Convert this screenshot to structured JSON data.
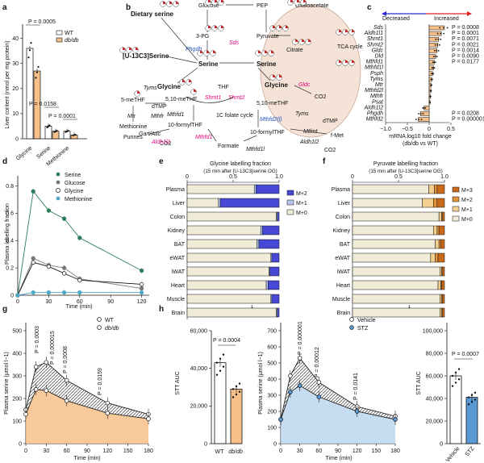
{
  "colors": {
    "wt": "#ffffff",
    "dbdb": "#f7c08a",
    "serine": "#2e7d5b",
    "glucose": "#777777",
    "glycine": "#ffffff",
    "methionine": "#4fa9c6",
    "m3": "#c96a1a",
    "m2_pyr": "#e0923c",
    "m1_pyr": "#f3cf8f",
    "m2_gly": "#4848d6",
    "m1_gly": "#b5c8ec",
    "m0": "#f1ecd8",
    "vehicle": "#ffffff",
    "stz": "#5b9bd5",
    "magenta": "#e0007a",
    "blue_enz": "#2255cc",
    "increased": "#e02020",
    "decreased": "#2a2ad6"
  },
  "panels": {
    "a": "a",
    "b": "b",
    "c": "c",
    "d": "d",
    "e": "e",
    "f": "f",
    "g": "g",
    "h": "h",
    "i": "i",
    "j": "j"
  },
  "a": {
    "ylabel": "Liver content (nmol per mg protein)",
    "legend": [
      "WT",
      "db/db"
    ],
    "categories": [
      "Glycine",
      "Serine",
      "Methionine"
    ],
    "pvalues": [
      "P = 0.0005",
      "P = 0.0158",
      "P = 0.0001"
    ],
    "ticks": [
      "0",
      "10",
      "20",
      "30",
      "40"
    ]
  },
  "b": {
    "labels": {
      "dietary": "Dietary serine",
      "glucose": "Glucose",
      "pep": "PEP",
      "oaa": "Oxaloacetate",
      "pg3": "3-PG",
      "pyruvate": "Pyruvate",
      "serine_c": "Serine",
      "serine_m": "Serine",
      "citrate": "Citrate",
      "tca": "TCA cycle",
      "u13c": "[U-13C3]Serine",
      "glycine_c": "Glycine",
      "glycine_m": "Glycine",
      "thf": "THF",
      "co2a": "CO2",
      "co2b": "CO2",
      "co2c": "CO2",
      "dtmp_c": "dTMP",
      "dtmp_m": "dTMP",
      "mthf5": "5-meTHF",
      "mthf510_c": "5,10-meTHF",
      "mthf510_m": "5,10-meTHF",
      "methionine": "Methionine",
      "purines": "Purines",
      "fthf_c": "10-formylTHF",
      "fthf_m": "10-formylTHF",
      "folate": "1C folate cycle",
      "formate": "Formate",
      "fmet": "f-Met"
    },
    "enzymes": {
      "phgdh": "Phgdh",
      "sds": "Sds",
      "tyms_c": "Tyms",
      "tyms_m": "Tyms",
      "mthfr": "Mthfr",
      "mtr": "Mtr",
      "shmt1": "Shmt1",
      "shmt2": "Shmt2",
      "gldc": "Gldc",
      "mthfd1_a": "Mthfd1",
      "mthfd1_b": "Mthfd1",
      "mthfd1l": "Mthfd1l",
      "mthfd2l": "Mthfd2(l)",
      "gartatic": "Gart/Atic",
      "aldh1l1": "Aldh1l1",
      "aldh1l2": "Aldh1l2",
      "mtfmt": "Mtfmt"
    }
  },
  "c": {
    "decreased": "Decreased",
    "increased": "Increased",
    "xlabel": "mRNA log10 fold change",
    "xlabel2": "(db/db vs WT)",
    "ticks": [
      "−1.0",
      "−0.5",
      "0",
      "0.5"
    ],
    "genes": [
      "Sds",
      "Aldh1l1",
      "Shmt1",
      "Shmt2",
      "Gldc",
      "Dld",
      "Mthfd1",
      "Mthfd1l",
      "Psph",
      "Tyms",
      "Mtr",
      "Mthfd2l",
      "Mthfr",
      "Psat",
      "Aldh1l2",
      "Phgdh",
      "Mthfd2"
    ],
    "values": [
      0.35,
      0.28,
      0.22,
      0.2,
      0.18,
      0.15,
      0.12,
      0.1,
      0.08,
      0.06,
      0.05,
      0.04,
      0.03,
      0.02,
      -0.12,
      -0.2,
      -0.25
    ],
    "pvalues": [
      "P = 0.0008",
      "P = 0.0001",
      "P = 0.0071",
      "P = 0.0021",
      "P = 0.0014",
      "P = 0.0090",
      "P = 0.0177",
      "P = 0.0208",
      "P = 0.000001"
    ]
  },
  "d": {
    "ylabel": "Plasma labelling fraction",
    "xlabel": "Time (min)",
    "legend": [
      "Serine",
      "Glucose",
      "Glycine",
      "Methionine"
    ],
    "xticks": [
      "0",
      "30",
      "60",
      "90",
      "120"
    ],
    "yticks": [
      "0",
      "0.2",
      "0.4",
      "0.6",
      "0.8"
    ]
  },
  "e": {
    "title": "Glycine labelling fraction",
    "subtitle": "(15 min after [U-13C3]serine OG)",
    "tissues": [
      "Plasma",
      "Liver",
      "Colon",
      "Kidney",
      "BAT",
      "eWAT",
      "iWAT",
      "Heart",
      "Muscle",
      "Brain"
    ],
    "legend": [
      "M+2",
      "M+1",
      "M+0"
    ],
    "ticks": [
      "0",
      "0.5",
      "1.0"
    ]
  },
  "f": {
    "title": "Pyruvate labelling fraction",
    "subtitle": "(15 min after [U-13C3]serine OG)",
    "tissues": [
      "Plasma",
      "Liver",
      "Colon",
      "Kidney",
      "BAT",
      "eWAT",
      "iWAT",
      "Heart",
      "Muscle",
      "Brain"
    ],
    "legend": [
      "M+3",
      "M+2",
      "M+1",
      "M+0"
    ],
    "ticks": [
      "0",
      "0.5",
      "1.0"
    ]
  },
  "g": {
    "ylabel": "Plasma serine (μmol l−1)",
    "xlabel": "Time (min)",
    "legend": [
      "WT",
      "db/db"
    ],
    "pvalues": [
      "P = 0.0003",
      "P = 0.000015",
      "P = 0.0008",
      "P = 0.0159"
    ],
    "xticks": [
      "0",
      "30",
      "60",
      "90",
      "120",
      "150",
      "180"
    ],
    "yticks": [
      "0",
      "100",
      "200",
      "300",
      "400",
      "500"
    ]
  },
  "h": {
    "ylabel": "STT AUC",
    "pvalue": "P = 0.0004",
    "categories": [
      "WT",
      "db/db"
    ],
    "ticks": [
      "0",
      "20,000",
      "40,000",
      "60,000"
    ]
  },
  "i": {
    "ylabel": "Plasma serine (μmol l−1)",
    "xlabel": "Time (min)",
    "legend": [
      "Vehicle",
      "STZ"
    ],
    "pvalues": [
      "P = 0.000001",
      "P = 0.00012",
      "P = 0.0141"
    ],
    "xticks": [
      "0",
      "30",
      "60",
      "90",
      "120",
      "150",
      "180"
    ],
    "yticks": [
      "0",
      "100",
      "200",
      "300",
      "400",
      "500",
      "600",
      "700"
    ]
  },
  "j": {
    "ylabel": "STT AUC",
    "pvalue": "P = 0.0007",
    "categories": [
      "Vehicle",
      "STZ"
    ],
    "ticks": [
      "0",
      "20,000",
      "40,000",
      "60,000",
      "80,000",
      "100,000"
    ]
  },
  "chart_data": [
    {
      "panel": "a",
      "type": "bar",
      "categories": [
        "Glycine",
        "Serine",
        "Methionine"
      ],
      "series": [
        {
          "name": "WT",
          "values": [
            36,
            5,
            3
          ]
        },
        {
          "name": "db/db",
          "values": [
            27,
            3,
            1.5
          ]
        }
      ],
      "ylim": [
        0,
        45
      ],
      "ylabel": "Liver content (nmol per mg protein)"
    },
    {
      "panel": "d",
      "type": "line",
      "x": [
        0,
        15,
        30,
        45,
        60,
        120
      ],
      "series": [
        {
          "name": "Serine",
          "values": [
            0,
            0.76,
            0.62,
            0.56,
            0.42,
            0.18
          ]
        },
        {
          "name": "Glucose",
          "values": [
            0,
            0.27,
            0.22,
            0.2,
            0.12,
            0.05
          ]
        },
        {
          "name": "Glycine",
          "values": [
            0,
            0.24,
            0.21,
            0.16,
            0.11,
            0.08
          ]
        },
        {
          "name": "Methionine",
          "values": [
            0,
            0.02,
            0.02,
            0.02,
            0.02,
            0.02
          ]
        }
      ],
      "ylim": [
        0,
        0.85
      ],
      "xlim": [
        0,
        125
      ]
    },
    {
      "panel": "e",
      "type": "bar",
      "stacked": true,
      "categories": [
        "Plasma",
        "Liver",
        "Colon",
        "Kidney",
        "BAT",
        "eWAT",
        "iWAT",
        "Heart",
        "Muscle",
        "Brain"
      ],
      "series": [
        {
          "name": "M+2",
          "values": [
            0.25,
            0.64,
            0.02,
            0.18,
            0.22,
            0.08,
            0.1,
            0.12,
            0.08,
            0.02
          ]
        },
        {
          "name": "M+1",
          "values": [
            0.02,
            0.02,
            0.01,
            0.02,
            0.02,
            0.01,
            0.01,
            0.02,
            0.01,
            0.01
          ]
        }
      ]
    },
    {
      "panel": "f",
      "type": "bar",
      "stacked": true,
      "categories": [
        "Plasma",
        "Liver",
        "Colon",
        "Kidney",
        "BAT",
        "eWAT",
        "iWAT",
        "Heart",
        "Muscle",
        "Brain"
      ],
      "series": [
        {
          "name": "M+3",
          "values": [
            0.08,
            0.08,
            0.02,
            0.06,
            0.04,
            0.07,
            0.02,
            0.03,
            0.02,
            0.02
          ]
        },
        {
          "name": "M+2",
          "values": [
            0.03,
            0.04,
            0.01,
            0.02,
            0.02,
            0.03,
            0.01,
            0.01,
            0.01,
            0.01
          ]
        },
        {
          "name": "M+1",
          "values": [
            0.06,
            0.12,
            0.03,
            0.04,
            0.04,
            0.05,
            0.02,
            0.03,
            0.02,
            0.02
          ]
        }
      ]
    },
    {
      "panel": "g",
      "type": "area",
      "x": [
        0,
        15,
        30,
        60,
        120,
        180
      ],
      "series": [
        {
          "name": "WT",
          "values": [
            150,
            340,
            360,
            280,
            180,
            130
          ]
        },
        {
          "name": "db/db",
          "values": [
            130,
            240,
            235,
            190,
            135,
            110
          ]
        }
      ],
      "ylim": [
        0,
        500
      ]
    },
    {
      "panel": "h",
      "type": "bar",
      "categories": [
        "WT",
        "db/db"
      ],
      "values": [
        43000,
        29000
      ],
      "ylim": [
        0,
        60000
      ]
    },
    {
      "panel": "i",
      "type": "area",
      "x": [
        0,
        15,
        30,
        60,
        120,
        180
      ],
      "series": [
        {
          "name": "Vehicle",
          "values": [
            150,
            420,
            530,
            380,
            230,
            170
          ]
        },
        {
          "name": "STZ",
          "values": [
            150,
            320,
            360,
            290,
            200,
            150
          ]
        }
      ],
      "ylim": [
        0,
        700
      ]
    },
    {
      "panel": "j",
      "type": "bar",
      "categories": [
        "Vehicle",
        "STZ"
      ],
      "values": [
        60000,
        41000
      ],
      "ylim": [
        0,
        100000
      ]
    }
  ]
}
